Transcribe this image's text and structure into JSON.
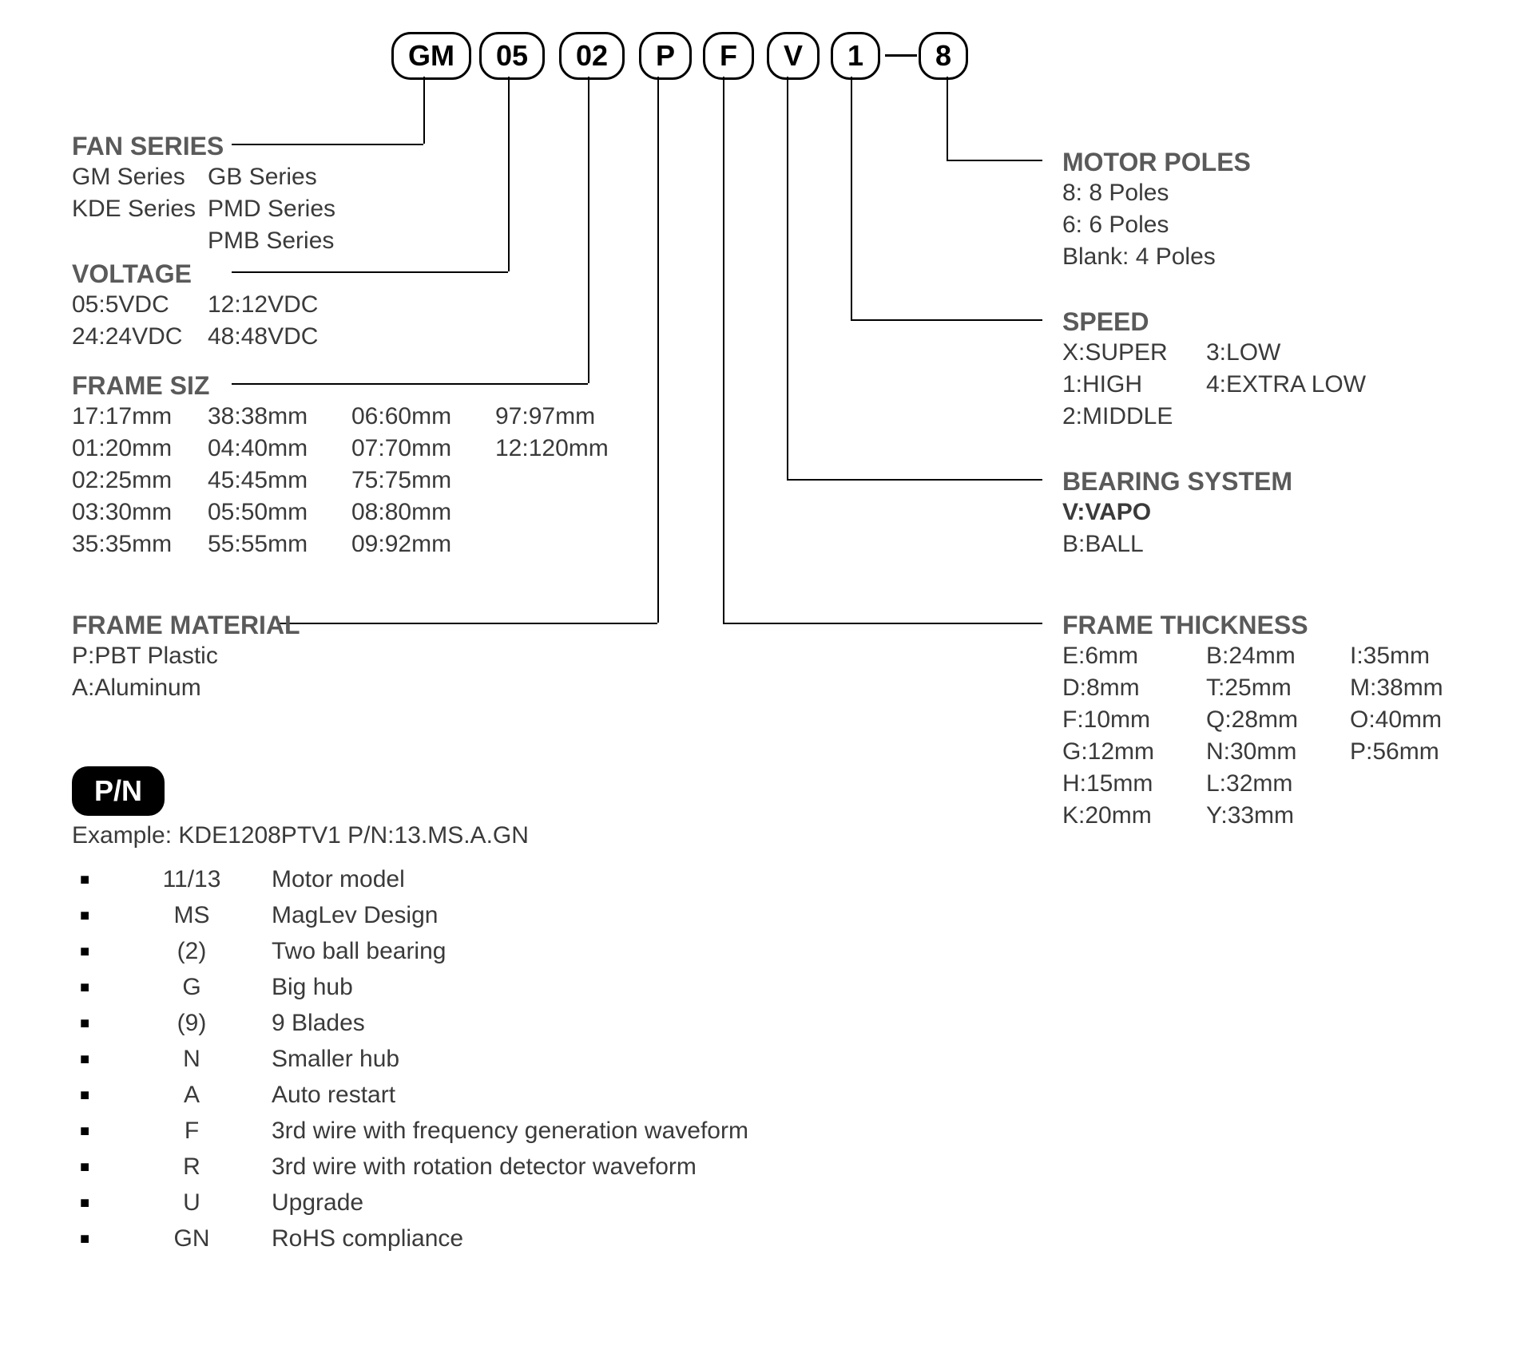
{
  "pills": [
    "GM",
    "05",
    "02",
    "P",
    "F",
    "V",
    "1",
    "8"
  ],
  "sections": {
    "fanSeries": {
      "title": "FAN SERIES",
      "col1": [
        "GM Series",
        "KDE Series"
      ],
      "col2": [
        "GB Series",
        "PMD Series",
        "PMB Series"
      ]
    },
    "voltage": {
      "title": "VOLTAGE",
      "col1": [
        "05:5VDC",
        "24:24VDC"
      ],
      "col2": [
        "12:12VDC",
        "48:48VDC"
      ]
    },
    "frameSize": {
      "title": "FRAME SIZ",
      "col1": [
        "17:17mm",
        "01:20mm",
        "02:25mm",
        "03:30mm",
        "35:35mm"
      ],
      "col2": [
        "38:38mm",
        "04:40mm",
        "45:45mm",
        "05:50mm",
        "55:55mm"
      ],
      "col3": [
        "06:60mm",
        "07:70mm",
        "75:75mm",
        "08:80mm",
        "09:92mm"
      ],
      "col4": [
        "97:97mm",
        "12:120mm"
      ]
    },
    "frameMaterial": {
      "title": "FRAME MATERIAL",
      "items": [
        "P:PBT Plastic",
        "A:Aluminum"
      ]
    },
    "motorPoles": {
      "title": "MOTOR POLES",
      "items": [
        "8: 8 Poles",
        "6: 6 Poles",
        "Blank: 4 Poles"
      ]
    },
    "speed": {
      "title": "SPEED",
      "col1": [
        "X:SUPER",
        "1:HIGH",
        "2:MIDDLE"
      ],
      "col2": [
        "3:LOW",
        "4:EXTRA  LOW"
      ]
    },
    "bearing": {
      "title": "BEARING SYSTEM",
      "items": [
        "V:VAPO",
        "B:BALL"
      ]
    },
    "frameThickness": {
      "title": "FRAME THICKNESS",
      "col1": [
        "E:6mm",
        "D:8mm",
        "F:10mm",
        "G:12mm",
        "H:15mm",
        "K:20mm"
      ],
      "col2": [
        "B:24mm",
        "T:25mm",
        "Q:28mm",
        "N:30mm",
        "L:32mm",
        "Y:33mm"
      ],
      "col3": [
        "I:35mm",
        "M:38mm",
        "O:40mm",
        "P:56mm"
      ]
    }
  },
  "pn": {
    "badge": "P/N",
    "example": "Example: KDE1208PTV1  P/N:13.MS.A.GN",
    "rows": [
      {
        "code": "11/13",
        "desc": "Motor model"
      },
      {
        "code": "MS",
        "desc": "MagLev Design"
      },
      {
        "code": "(2)",
        "desc": "Two ball bearing"
      },
      {
        "code": "G",
        "desc": "Big hub"
      },
      {
        "code": "(9)",
        "desc": "9 Blades"
      },
      {
        "code": "N",
        "desc": "Smaller hub"
      },
      {
        "code": "A",
        "desc": "Auto restart"
      },
      {
        "code": "F",
        "desc": "3rd wire with frequency generation waveform"
      },
      {
        "code": "R",
        "desc": "3rd wire with rotation detector waveform"
      },
      {
        "code": "U",
        "desc": "Upgrade"
      },
      {
        "code": "GN",
        "desc": "RoHS compliance"
      }
    ]
  },
  "layout": {
    "pillY": 40,
    "pillXs": [
      500,
      610,
      710,
      810,
      890,
      970,
      1050,
      1160
    ],
    "leftColX": 90,
    "leftCol2X": 260,
    "leftCol3X": 440,
    "leftCol4X": 620,
    "rightColX": 1330,
    "rightCol2X": 1510,
    "rightCol3X": 1690
  },
  "colors": {
    "text": "#3a3a3a",
    "heading": "#5a5a5a",
    "line": "#000000",
    "bg": "#ffffff"
  }
}
